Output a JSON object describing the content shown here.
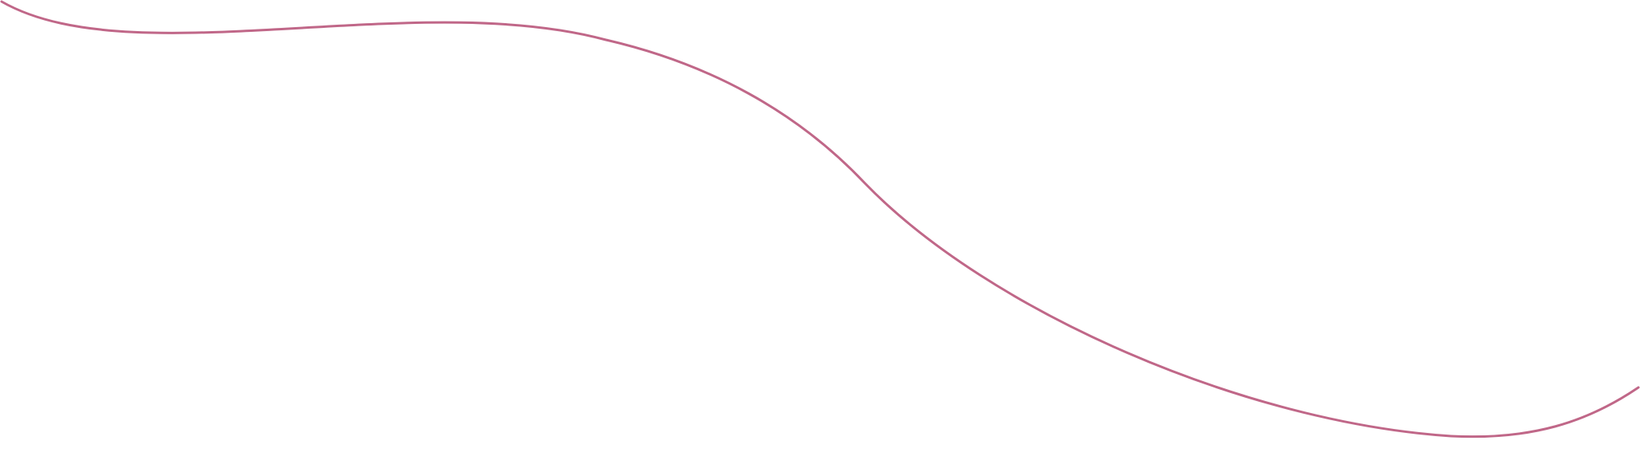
{
  "decoration": {
    "curve_color": "#C06788",
    "background_color": "#FFFFFF"
  }
}
